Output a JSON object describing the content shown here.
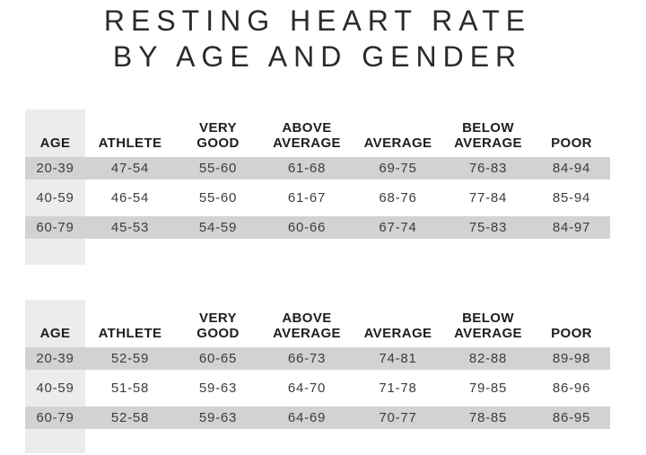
{
  "title": {
    "line1": "RESTING HEART RATE",
    "line2": "BY AGE AND GENDER"
  },
  "columns": [
    {
      "line1": "",
      "line2": "AGE"
    },
    {
      "line1": "",
      "line2": "ATHLETE"
    },
    {
      "line1": "VERY",
      "line2": "GOOD"
    },
    {
      "line1": "ABOVE",
      "line2": "AVERAGE"
    },
    {
      "line1": "",
      "line2": "AVERAGE"
    },
    {
      "line1": "BELOW",
      "line2": "AVERAGE"
    },
    {
      "line1": "",
      "line2": "POOR"
    }
  ],
  "tables": [
    {
      "rows": [
        {
          "cells": [
            "20-39",
            "47-54",
            "55-60",
            "61-68",
            "69-75",
            "76-83",
            "84-94"
          ]
        },
        {
          "cells": [
            "40-59",
            "46-54",
            "55-60",
            "61-67",
            "68-76",
            "77-84",
            "85-94"
          ]
        },
        {
          "cells": [
            "60-79",
            "45-53",
            "54-59",
            "60-66",
            "67-74",
            "75-83",
            "84-97"
          ]
        }
      ]
    },
    {
      "rows": [
        {
          "cells": [
            "20-39",
            "52-59",
            "60-65",
            "66-73",
            "74-81",
            "82-88",
            "89-98"
          ]
        },
        {
          "cells": [
            "40-59",
            "51-58",
            "59-63",
            "64-70",
            "71-78",
            "79-85",
            "86-96"
          ]
        },
        {
          "cells": [
            "60-79",
            "52-58",
            "59-63",
            "64-69",
            "70-77",
            "78-85",
            "86-95"
          ]
        }
      ]
    }
  ],
  "colors": {
    "stripe_row": "#d2d2d2",
    "age_column": "#ececec",
    "title_text": "#2b2b2b",
    "header_text": "#1e1e1e",
    "data_text": "#3c3c3c",
    "background": "#ffffff"
  },
  "chart_data": {
    "type": "table",
    "title": "RESTING HEART RATE BY AGE AND GENDER",
    "columns": [
      "AGE",
      "ATHLETE",
      "VERY GOOD",
      "ABOVE AVERAGE",
      "AVERAGE",
      "BELOW AVERAGE",
      "POOR"
    ],
    "tables": [
      {
        "name": "upper-table",
        "rows": [
          [
            "20-39",
            "47-54",
            "55-60",
            "61-68",
            "69-75",
            "76-83",
            "84-94"
          ],
          [
            "40-59",
            "46-54",
            "55-60",
            "61-67",
            "68-76",
            "77-84",
            "85-94"
          ],
          [
            "60-79",
            "45-53",
            "54-59",
            "60-66",
            "67-74",
            "75-83",
            "84-97"
          ]
        ]
      },
      {
        "name": "lower-table",
        "rows": [
          [
            "20-39",
            "52-59",
            "60-65",
            "66-73",
            "74-81",
            "82-88",
            "89-98"
          ],
          [
            "40-59",
            "51-58",
            "59-63",
            "64-70",
            "71-78",
            "79-85",
            "86-96"
          ],
          [
            "60-79",
            "52-58",
            "59-63",
            "64-69",
            "70-77",
            "78-85",
            "86-95"
          ]
        ]
      }
    ],
    "layout": {
      "striped_rows": [
        0,
        2
      ],
      "age_column_highlight": true,
      "grid": false
    }
  }
}
